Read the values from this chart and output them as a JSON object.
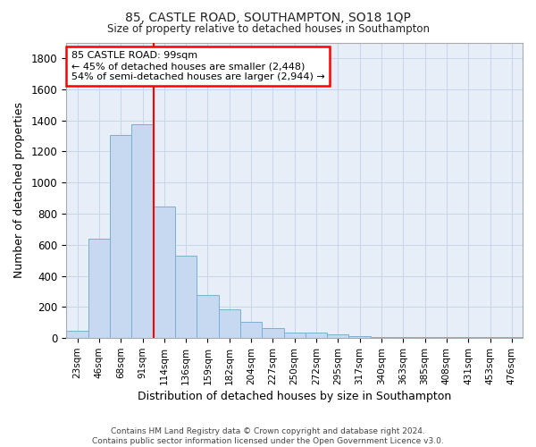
{
  "title": "85, CASTLE ROAD, SOUTHAMPTON, SO18 1QP",
  "subtitle": "Size of property relative to detached houses in Southampton",
  "xlabel": "Distribution of detached houses by size in Southampton",
  "ylabel": "Number of detached properties",
  "categories": [
    "23sqm",
    "46sqm",
    "68sqm",
    "91sqm",
    "114sqm",
    "136sqm",
    "159sqm",
    "182sqm",
    "204sqm",
    "227sqm",
    "250sqm",
    "272sqm",
    "295sqm",
    "317sqm",
    "340sqm",
    "363sqm",
    "385sqm",
    "408sqm",
    "431sqm",
    "453sqm",
    "476sqm"
  ],
  "values": [
    50,
    638,
    1305,
    1375,
    848,
    530,
    275,
    185,
    105,
    63,
    38,
    35,
    27,
    15,
    8,
    5,
    5,
    5,
    5,
    5,
    5
  ],
  "bar_color": "#c6d9f0",
  "bar_edge_color": "#7bafd4",
  "grid_color": "#c8d4e8",
  "vline_x": 3.5,
  "vline_color": "red",
  "annotation_text": "85 CASTLE ROAD: 99sqm\n← 45% of detached houses are smaller (2,448)\n54% of semi-detached houses are larger (2,944) →",
  "annotation_box_color": "white",
  "annotation_box_edge_color": "red",
  "ylim": [
    0,
    1900
  ],
  "yticks": [
    0,
    200,
    400,
    600,
    800,
    1000,
    1200,
    1400,
    1600,
    1800
  ],
  "footer_line1": "Contains HM Land Registry data © Crown copyright and database right 2024.",
  "footer_line2": "Contains public sector information licensed under the Open Government Licence v3.0.",
  "bg_color": "#ffffff",
  "plot_bg_color": "#e8eef8"
}
